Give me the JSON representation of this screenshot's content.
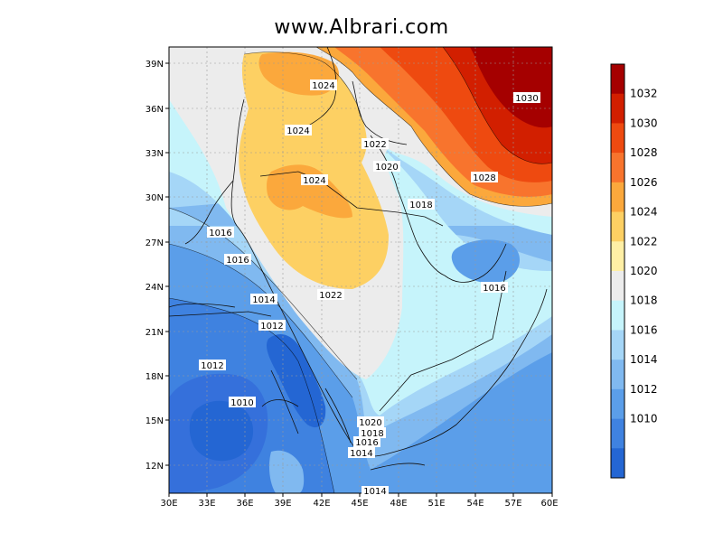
{
  "title": "www.Albrari.com",
  "map": {
    "lon_ticks": [
      "30E",
      "33E",
      "36E",
      "39E",
      "42E",
      "45E",
      "48E",
      "51E",
      "54E",
      "57E",
      "60E"
    ],
    "lat_ticks": [
      "39N",
      "36N",
      "33N",
      "30N",
      "27N",
      "24N",
      "21N",
      "18N",
      "15N",
      "12N"
    ],
    "contour_labels": [
      "1024",
      "1024",
      "1024",
      "1022",
      "1020",
      "1018",
      "1016",
      "1016",
      "1014",
      "1012",
      "1012",
      "1010",
      "1022",
      "1016",
      "1028",
      "1030",
      "1020",
      "1018",
      "1016",
      "1014",
      "1014"
    ]
  },
  "colorbar": {
    "labels": [
      "1032",
      "1030",
      "1028",
      "1026",
      "1024",
      "1022",
      "1020",
      "1018",
      "1016",
      "1014",
      "1012",
      "1010"
    ],
    "colors": [
      "#a50000",
      "#d21f00",
      "#ee4a10",
      "#f8742d",
      "#fba83c",
      "#fdd063",
      "#ffefa5",
      "#ececec",
      "#c6f4fb",
      "#a5d6f7",
      "#80b9f0",
      "#5b9ee9",
      "#3f82e0",
      "#2466d3"
    ]
  }
}
